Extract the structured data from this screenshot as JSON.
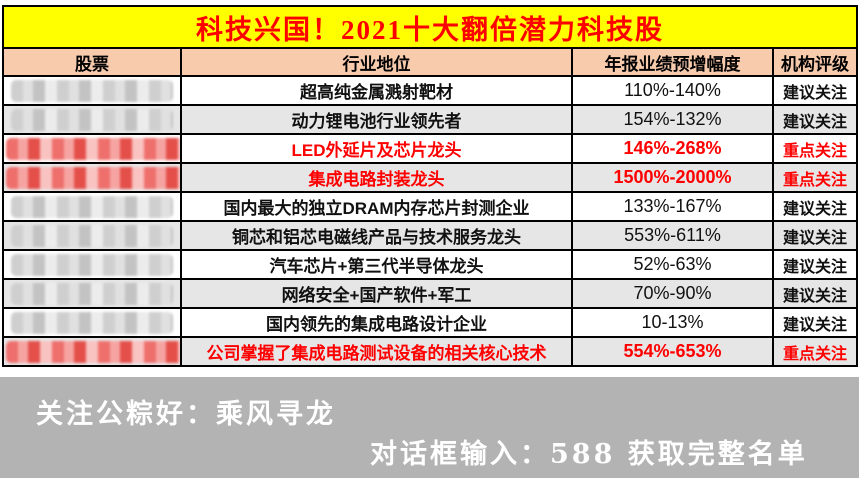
{
  "title": "科技兴国！2021十大翻倍潜力科技股",
  "colors": {
    "title_bg": "#FFFF00",
    "title_text": "#FF0000",
    "header_bg": "#F8CBAD",
    "row_alt_bg": "#E7E6E6",
    "highlight_text": "#FF0000",
    "footer_bg": "#B3B3B3",
    "footer_text": "#FFFFFF"
  },
  "table": {
    "columns": [
      "股票",
      "行业地位",
      "年报业绩预增幅度",
      "机构评级"
    ],
    "rows": [
      {
        "stock_redacted": true,
        "redaction_color": "gray",
        "industry": "超高纯金属溅射靶材",
        "forecast_range": "110%-140%",
        "rating": "建议关注",
        "highlight": false
      },
      {
        "stock_redacted": true,
        "redaction_color": "gray",
        "industry": "动力锂电池行业领先者",
        "forecast_range": "154%-132%",
        "rating": "建议关注",
        "highlight": false
      },
      {
        "stock_redacted": true,
        "redaction_color": "red",
        "industry": "LED外延片及芯片龙头",
        "forecast_range": "146%-268%",
        "rating": "重点关注",
        "highlight": true
      },
      {
        "stock_redacted": true,
        "redaction_color": "red",
        "industry": "集成电路封装龙头",
        "forecast_range": "1500%-2000%",
        "rating": "重点关注",
        "highlight": true
      },
      {
        "stock_redacted": true,
        "redaction_color": "gray",
        "industry": "国内最大的独立DRAM内存芯片封测企业",
        "forecast_range": "133%-167%",
        "rating": "建议关注",
        "highlight": false
      },
      {
        "stock_redacted": true,
        "redaction_color": "gray",
        "industry": "铜芯和铝芯电磁线产品与技术服务龙头",
        "forecast_range": "553%-611%",
        "rating": "建议关注",
        "highlight": false
      },
      {
        "stock_redacted": true,
        "redaction_color": "gray",
        "industry": "汽车芯片+第三代半导体龙头",
        "forecast_range": "52%-63%",
        "rating": "建议关注",
        "highlight": false
      },
      {
        "stock_redacted": true,
        "redaction_color": "gray",
        "industry": "网络安全+国产软件+军工",
        "forecast_range": "70%-90%",
        "rating": "建议关注",
        "highlight": false
      },
      {
        "stock_redacted": true,
        "redaction_color": "gray",
        "industry": "国内领先的集成电路设计企业",
        "forecast_range": "10-13%",
        "rating": "建议关注",
        "highlight": false
      },
      {
        "stock_redacted": true,
        "redaction_color": "red",
        "industry": "公司掌握了集成电路测试设备的相关核心技术",
        "forecast_range": "554%-653%",
        "rating": "重点关注",
        "highlight": true
      }
    ]
  },
  "footer": {
    "line1": "关注公粽好：乘风寻龙",
    "line2": "对话框输入：588 获取完整名单"
  }
}
